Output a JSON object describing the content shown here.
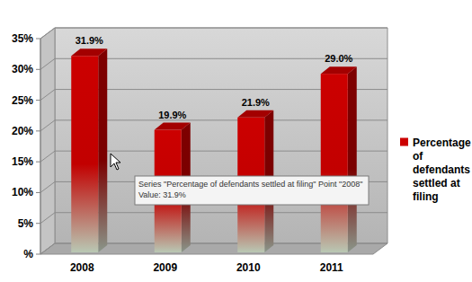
{
  "chart_data": {
    "type": "bar",
    "categories": [
      "2008",
      "2009",
      "2010",
      "2011"
    ],
    "series": [
      {
        "name": "Percentage of defendants settled at filing",
        "color": "#cc0000",
        "values": [
          31.9,
          19.9,
          21.9,
          29.0
        ],
        "value_labels": [
          "31.9%",
          "19.9%",
          "21.9%",
          "29.0%"
        ]
      }
    ],
    "ylim": [
      0,
      35
    ],
    "yticks": [
      {
        "value": 0,
        "label": "%"
      },
      {
        "value": 5,
        "label": "5%"
      },
      {
        "value": 10,
        "label": "10%"
      },
      {
        "value": 15,
        "label": "15%"
      },
      {
        "value": 20,
        "label": "20%"
      },
      {
        "value": 25,
        "label": "25%"
      },
      {
        "value": 30,
        "label": "30%"
      },
      {
        "value": 35,
        "label": "35%"
      }
    ],
    "grid": true,
    "legend": "right",
    "data_labels": true,
    "annotations": [
      "Series \"Percentage of defendants settled at filing\" Point \"2008\"",
      "Value: 31.9%"
    ]
  }
}
